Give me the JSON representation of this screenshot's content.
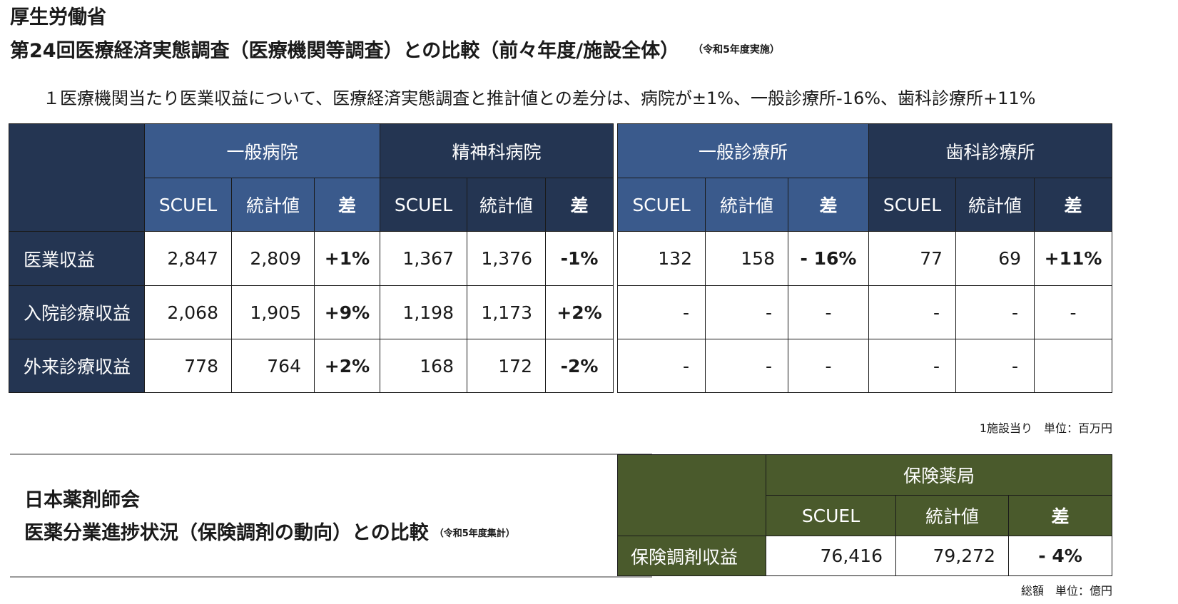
{
  "header": {
    "org": "厚生労働省",
    "title": "第24回医療経済実態調査（医療機関等調査）との比較（前々年度/施設全体）",
    "note": "（令和5年度実施）",
    "summary": "１医療機関当たり医業収益について、医療経済実態調査と推計値との差分は、病院が±1%、一般診療所-16%、歯科診療所+11%"
  },
  "table1": {
    "groups": [
      "一般病院",
      "精神科病院",
      "一般診療所",
      "歯科診療所"
    ],
    "subheaders": [
      "SCUEL",
      "統計値",
      "差"
    ],
    "rows": [
      {
        "label": "医業収益",
        "cells": [
          "2,847",
          "2,809",
          "+1%",
          "1,367",
          "1,376",
          "-1%",
          "132",
          "158",
          "- 16%",
          "77",
          "69",
          "+11%"
        ]
      },
      {
        "label": "入院診療収益",
        "cells": [
          "2,068",
          "1,905",
          "+9%",
          "1,198",
          "1,173",
          "+2%",
          "-",
          "-",
          "-",
          "-",
          "-",
          "-"
        ]
      },
      {
        "label": "外来診療収益",
        "cells": [
          "778",
          "764",
          "+2%",
          "168",
          "172",
          "-2%",
          "-",
          "-",
          "-",
          "-",
          "-",
          ""
        ]
      }
    ],
    "unit": "1施設当り　単位：百万円"
  },
  "section2": {
    "org": "日本薬剤師会",
    "title": "医薬分業進捗状況（保険調剤の動向）との比較",
    "note": "（令和5年度集計）"
  },
  "table2": {
    "group": "保険薬局",
    "subheaders": [
      "SCUEL",
      "統計値",
      "差"
    ],
    "row": {
      "label": "保険調剤収益",
      "cells": [
        "76,416",
        "79,272",
        "- 4%"
      ]
    },
    "unit": "総額　単位：億円"
  },
  "colors": {
    "blue_header": "#3a5a8c",
    "navy_header": "#243552",
    "olive_header": "#4a5a2c"
  }
}
